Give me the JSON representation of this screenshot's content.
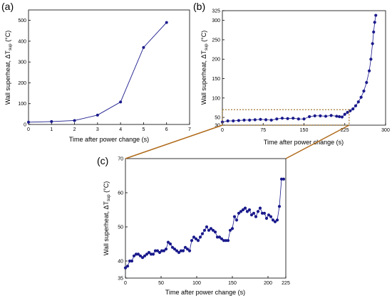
{
  "colors": {
    "series": "#1a1a8c",
    "connector": "#b06a1a",
    "highlight_box": "#9a6b1a",
    "axis": "#000000"
  },
  "chart_data": [
    {
      "panel": "(a)",
      "type": "line",
      "xlabel": "Time after power change (s)",
      "ylabel": "Wall superheat, ΔT",
      "ylabel_sub": "sup",
      "ylabel_unit": " (°C)",
      "xlim": [
        0,
        7
      ],
      "ylim": [
        0,
        550
      ],
      "xticks": [
        0,
        1,
        2,
        3,
        4,
        5,
        6,
        7
      ],
      "yticks": [
        0,
        100,
        200,
        300,
        400,
        500
      ],
      "grid": false,
      "series": [
        {
          "x": [
            0,
            1,
            2,
            3,
            4,
            5,
            6
          ],
          "y": [
            11,
            14,
            19,
            45,
            108,
            370,
            490
          ]
        }
      ]
    },
    {
      "panel": "(b)",
      "type": "scatter",
      "xlabel": "Time after power change (s)",
      "ylabel": "Wall superheat, ΔT",
      "ylabel_sub": "sup",
      "ylabel_unit": " (°C)",
      "xlim": [
        0,
        300
      ],
      "ylim": [
        30,
        325
      ],
      "xticks": [
        0,
        75,
        150,
        225,
        300
      ],
      "yticks": [
        30,
        50,
        100,
        150,
        200,
        250,
        300,
        325
      ],
      "grid": false,
      "highlight_region": {
        "x": [
          0,
          233
        ],
        "y": [
          30,
          70
        ]
      },
      "series": [
        {
          "x": [
            0,
            10,
            20,
            30,
            40,
            50,
            60,
            70,
            80,
            90,
            100,
            110,
            120,
            130,
            140,
            150,
            160,
            170,
            180,
            190,
            200,
            210,
            215,
            220,
            225,
            230,
            235,
            240,
            245,
            250,
            255,
            260,
            265,
            270,
            273,
            276,
            278,
            280,
            282
          ],
          "y": [
            38,
            41,
            41,
            42,
            43,
            43,
            44,
            45,
            44,
            43,
            46,
            48,
            47,
            48,
            46,
            46,
            52,
            54,
            54,
            53,
            55,
            53,
            52,
            51,
            58,
            63,
            67,
            72,
            80,
            90,
            102,
            118,
            140,
            170,
            200,
            240,
            270,
            295,
            313
          ]
        }
      ]
    },
    {
      "panel": "(c)",
      "type": "line",
      "xlabel": "Time after power change (s)",
      "ylabel": "Wall superheat, ΔT",
      "ylabel_sub": "sup",
      "ylabel_unit": " (°C)",
      "xlim": [
        0,
        225
      ],
      "ylim": [
        35,
        70
      ],
      "xticks": [
        0,
        50,
        100,
        150,
        200,
        225
      ],
      "yticks": [
        35,
        40,
        50,
        60,
        70
      ],
      "grid": false,
      "series": [
        {
          "x": [
            0,
            3,
            6,
            9,
            12,
            15,
            18,
            21,
            24,
            27,
            30,
            33,
            36,
            39,
            42,
            45,
            48,
            51,
            54,
            57,
            60,
            63,
            66,
            69,
            72,
            75,
            78,
            81,
            84,
            87,
            90,
            93,
            96,
            99,
            102,
            105,
            108,
            111,
            114,
            117,
            120,
            123,
            126,
            129,
            132,
            135,
            138,
            141,
            144,
            147,
            150,
            153,
            156,
            159,
            162,
            165,
            168,
            171,
            174,
            177,
            180,
            183,
            186,
            189,
            192,
            195,
            198,
            201,
            204,
            207,
            210,
            213,
            216,
            219,
            222
          ],
          "y": [
            38,
            38.5,
            40,
            40,
            41.5,
            42,
            42,
            41.5,
            41,
            41.5,
            42,
            42.5,
            42,
            42,
            43,
            43,
            42.5,
            43,
            43,
            43.5,
            45.5,
            45,
            44,
            43.5,
            43,
            42.5,
            43,
            43,
            44,
            43.5,
            43,
            46,
            47,
            46.5,
            46,
            47,
            48,
            49,
            50,
            49,
            49.5,
            49,
            48.5,
            47,
            47,
            46.5,
            46,
            46,
            46,
            49,
            49.5,
            53,
            52,
            54,
            54.5,
            55,
            55.5,
            54.5,
            55,
            53.5,
            54,
            53,
            54.5,
            55.5,
            54,
            54,
            52.5,
            53.5,
            53,
            52,
            51.5,
            52,
            56,
            64,
            64
          ]
        }
      ]
    }
  ]
}
